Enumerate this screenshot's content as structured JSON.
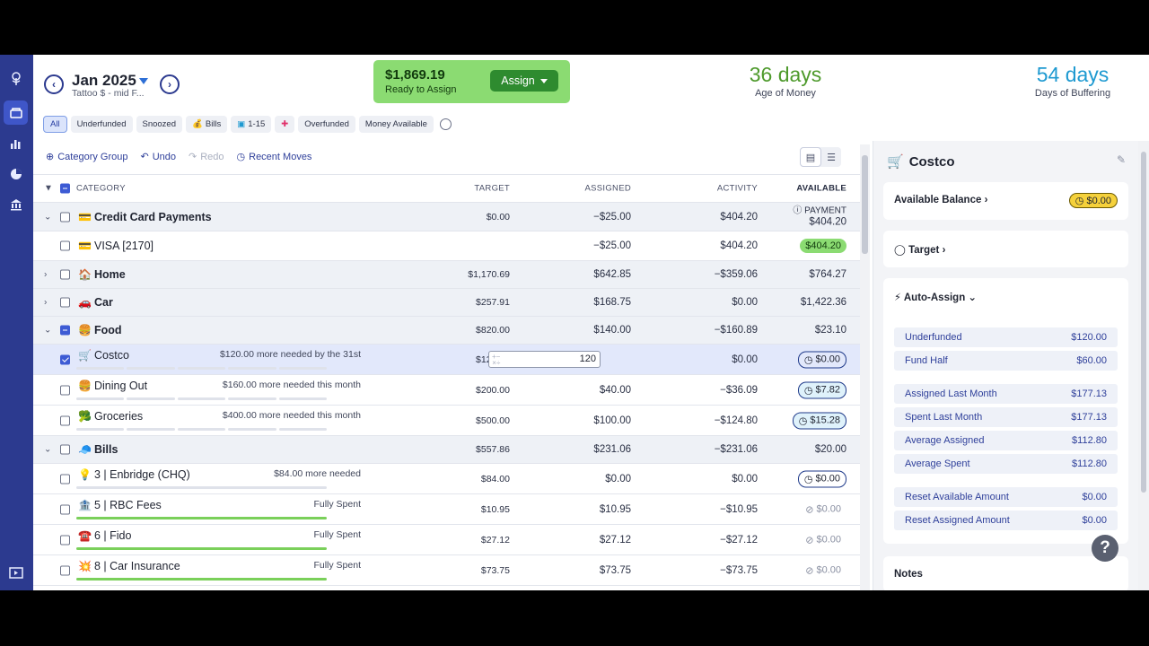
{
  "nav": {
    "icons": [
      "tree-logo-icon",
      "budget-icon",
      "reports-icon",
      "pie-chart-icon",
      "bank-icon",
      "collapse-icon"
    ]
  },
  "header": {
    "month": "Jan 2025",
    "budget_name": "Tattoo $ - mid F...",
    "ready_amount": "$1,869.19",
    "ready_label": "Ready to Assign",
    "assign_label": "Assign",
    "age_value": "36 days",
    "age_label": "Age of Money",
    "buffer_value": "54 days",
    "buffer_label": "Days of Buffering"
  },
  "filters": [
    "All",
    "Underfunded",
    "Snoozed",
    "Bills",
    "1-15",
    "",
    "Overfunded",
    "Money Available"
  ],
  "toolbar": {
    "category_group": "Category Group",
    "undo": "Undo",
    "redo": "Redo",
    "recent_moves": "Recent Moves"
  },
  "columns": {
    "category": "CATEGORY",
    "target": "TARGET",
    "assigned": "ASSIGNED",
    "activity": "ACTIVITY",
    "available": "AVAILABLE"
  },
  "rows": [
    {
      "type": "group",
      "name": "Credit Card Payments",
      "emoji": "💳",
      "target": "$0.00",
      "assigned": "−$25.00",
      "activity": "$404.20",
      "available_label": "PAYMENT",
      "available": "$404.20"
    },
    {
      "type": "item",
      "name": "VISA [2170]",
      "emoji": "💳",
      "assigned": "−$25.00",
      "activity": "$404.20",
      "available": "$404.20"
    },
    {
      "type": "group",
      "name": "Home",
      "emoji": "🏠",
      "target": "$1,170.69",
      "assigned": "$642.85",
      "activity": "−$359.06",
      "available": "$764.27"
    },
    {
      "type": "group",
      "name": "Car",
      "emoji": "🚗",
      "target": "$257.91",
      "assigned": "$168.75",
      "activity": "$0.00",
      "available": "$1,422.36"
    },
    {
      "type": "group",
      "name": "Food",
      "emoji": "🍔",
      "target": "$820.00",
      "assigned": "$140.00",
      "activity": "−$160.89",
      "available": "$23.10"
    },
    {
      "type": "item",
      "name": "Costco",
      "emoji": "🛒",
      "goal": "$120.00 more needed by the 31st",
      "target": "$120.00",
      "assigned": "120",
      "activity": "$0.00",
      "available": "$0.00"
    },
    {
      "type": "item",
      "name": "Dining Out",
      "emoji": "🍔",
      "goal": "$160.00 more needed this month",
      "target": "$200.00",
      "assigned": "$40.00",
      "activity": "−$36.09",
      "available": "$7.82"
    },
    {
      "type": "item",
      "name": "Groceries",
      "emoji": "🥦",
      "goal": "$400.00 more needed this month",
      "target": "$500.00",
      "assigned": "$100.00",
      "activity": "−$124.80",
      "available": "$15.28"
    },
    {
      "type": "group",
      "name": "Bills",
      "emoji": "🧢",
      "target": "$557.86",
      "assigned": "$231.06",
      "activity": "−$231.06",
      "available": "$20.00"
    },
    {
      "type": "item",
      "name": "3 | Enbridge (CHQ)",
      "emoji": "💡",
      "goal": "$84.00 more needed",
      "target": "$84.00",
      "assigned": "$0.00",
      "activity": "$0.00",
      "available": "$0.00"
    },
    {
      "type": "item",
      "name": "5 | RBC Fees",
      "emoji": "🏦",
      "goal": "Fully Spent",
      "target": "$10.95",
      "assigned": "$10.95",
      "activity": "−$10.95",
      "available": "$0.00"
    },
    {
      "type": "item",
      "name": "6 | Fido",
      "emoji": "☎️",
      "goal": "Fully Spent",
      "target": "$27.12",
      "assigned": "$27.12",
      "activity": "−$27.12",
      "available": "$0.00"
    },
    {
      "type": "item",
      "name": "8 | Car Insurance",
      "emoji": "💥",
      "goal": "Fully Spent",
      "target": "$73.75",
      "assigned": "$73.75",
      "activity": "−$73.75",
      "available": "$0.00"
    }
  ],
  "inspector": {
    "title": "Costco",
    "available_balance_label": "Available Balance",
    "available_balance": "$0.00",
    "target_label": "Target",
    "auto_assign_label": "Auto-Assign",
    "auto_assign": [
      {
        "label": "Underfunded",
        "value": "$120.00"
      },
      {
        "label": "Fund Half",
        "value": "$60.00"
      },
      {
        "label": "Assigned Last Month",
        "value": "$177.13"
      },
      {
        "label": "Spent Last Month",
        "value": "$177.13"
      },
      {
        "label": "Average Assigned",
        "value": "$112.80"
      },
      {
        "label": "Average Spent",
        "value": "$112.80"
      },
      {
        "label": "Reset Available Amount",
        "value": "$0.00"
      },
      {
        "label": "Reset Assigned Amount",
        "value": "$0.00"
      }
    ],
    "notes_label": "Notes"
  },
  "help": "?"
}
